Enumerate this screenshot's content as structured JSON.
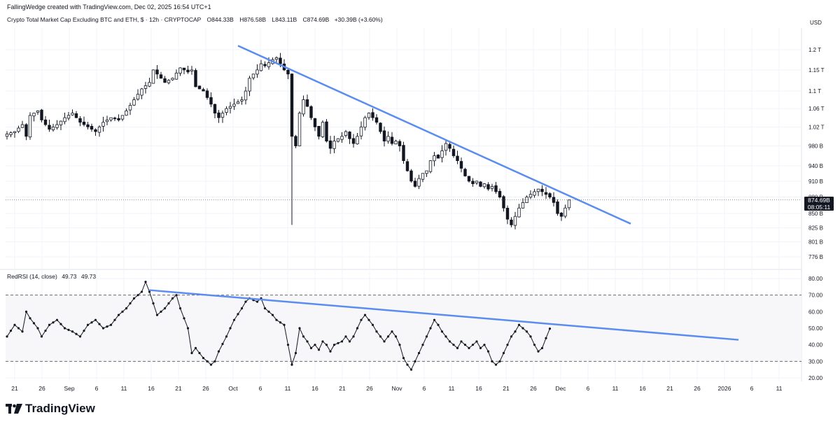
{
  "header": {
    "author_line": "FallingWedge created with TradingView.com, Dec 02, 2025 16:54 UTC+1"
  },
  "symbol": {
    "name": "Crypto Total Market Cap Excluding BTC and ETH, $ · 12h · CRYPTOCAP",
    "open": "O844.33B",
    "high": "H876.58B",
    "low": "L843.11B",
    "close": "C874.69B",
    "change": "+30.39B (+3.60%)"
  },
  "price_label": {
    "value": "874.69B",
    "countdown": "08:05:11"
  },
  "rsi_label": {
    "name": "RedRSI (14, close)",
    "v1": "49.73",
    "v2": "49.73"
  },
  "logo": {
    "text": "TradingView"
  },
  "colors": {
    "up": "#ffffff",
    "down": "#131722",
    "trend": "#5b8cf0",
    "grid": "#f0f3fa",
    "axis_text": "#131722"
  },
  "chart_data": [
    {
      "type": "candlestick",
      "unit": "USD",
      "y_scale": "log",
      "y_ticks": [
        "1.2 T",
        "1.15 T",
        "1.1 T",
        "1.06 T",
        "1.02 T",
        "980 B",
        "940 B",
        "910 B",
        "880 B",
        "850 B",
        "825 B",
        "801 B",
        "776 B"
      ],
      "y_tick_values": [
        1200,
        1150,
        1100,
        1060,
        1020,
        980,
        940,
        910,
        880,
        850,
        825,
        801,
        776
      ],
      "x_ticks": [
        "21",
        "26",
        "Sep",
        "6",
        "11",
        "16",
        "21",
        "26",
        "Oct",
        "6",
        "11",
        "16",
        "21",
        "26",
        "Nov",
        "6",
        "11",
        "16",
        "21",
        "26",
        "Dec",
        "6",
        "11",
        "16",
        "21",
        "26",
        "2026",
        "6",
        "11"
      ],
      "close_path": [
        [
          0,
          1005
        ],
        [
          2,
          1010
        ],
        [
          4,
          1025
        ],
        [
          5,
          1000
        ],
        [
          6,
          1045
        ],
        [
          8,
          1055
        ],
        [
          9,
          1035
        ],
        [
          11,
          1015
        ],
        [
          13,
          1025
        ],
        [
          15,
          1040
        ],
        [
          17,
          1050
        ],
        [
          19,
          1030
        ],
        [
          21,
          1020
        ],
        [
          23,
          1010
        ],
        [
          25,
          1030
        ],
        [
          27,
          1040
        ],
        [
          29,
          1035
        ],
        [
          31,
          1055
        ],
        [
          33,
          1080
        ],
        [
          35,
          1105
        ],
        [
          37,
          1120
        ],
        [
          38,
          1150
        ],
        [
          39,
          1140
        ],
        [
          41,
          1120
        ],
        [
          43,
          1130
        ],
        [
          45,
          1155
        ],
        [
          47,
          1145
        ],
        [
          48,
          1150
        ],
        [
          49,
          1110
        ],
        [
          51,
          1100
        ],
        [
          53,
          1070
        ],
        [
          54,
          1050
        ],
        [
          55,
          1040
        ],
        [
          57,
          1060
        ],
        [
          59,
          1070
        ],
        [
          61,
          1080
        ],
        [
          62,
          1100
        ],
        [
          63,
          1130
        ],
        [
          65,
          1150
        ],
        [
          66,
          1165
        ],
        [
          67,
          1160
        ],
        [
          69,
          1175
        ],
        [
          70,
          1180
        ],
        [
          71,
          1165
        ],
        [
          72,
          1150
        ],
        [
          73,
          1140
        ],
        [
          74,
          1000
        ],
        [
          75,
          980
        ],
        [
          76,
          1050
        ],
        [
          77,
          1080
        ],
        [
          78,
          1065
        ],
        [
          79,
          1040
        ],
        [
          80,
          1020
        ],
        [
          81,
          1000
        ],
        [
          82,
          1030
        ],
        [
          83,
          990
        ],
        [
          84,
          975
        ],
        [
          85,
          990
        ],
        [
          87,
          1000
        ],
        [
          88,
          1010
        ],
        [
          89,
          995
        ],
        [
          90,
          985
        ],
        [
          91,
          1000
        ],
        [
          92,
          1020
        ],
        [
          93,
          1040
        ],
        [
          94,
          1050
        ],
        [
          95,
          1040
        ],
        [
          96,
          1030
        ],
        [
          97,
          1010
        ],
        [
          98,
          990
        ],
        [
          99,
          1000
        ],
        [
          100,
          985
        ],
        [
          101,
          990
        ],
        [
          102,
          980
        ],
        [
          103,
          950
        ],
        [
          104,
          930
        ],
        [
          105,
          910
        ],
        [
          106,
          900
        ],
        [
          107,
          915
        ],
        [
          108,
          925
        ],
        [
          109,
          930
        ],
        [
          110,
          950
        ],
        [
          111,
          960
        ],
        [
          112,
          955
        ],
        [
          113,
          970
        ],
        [
          114,
          985
        ],
        [
          115,
          975
        ],
        [
          116,
          960
        ],
        [
          117,
          950
        ],
        [
          118,
          935
        ],
        [
          119,
          920
        ],
        [
          120,
          910
        ],
        [
          121,
          905
        ],
        [
          122,
          910
        ],
        [
          123,
          900
        ],
        [
          124,
          905
        ],
        [
          125,
          895
        ],
        [
          126,
          900
        ],
        [
          127,
          890
        ],
        [
          128,
          880
        ],
        [
          129,
          860
        ],
        [
          130,
          840
        ],
        [
          131,
          830
        ],
        [
          132,
          845
        ],
        [
          133,
          860
        ],
        [
          134,
          870
        ],
        [
          135,
          880
        ],
        [
          136,
          885
        ],
        [
          137,
          890
        ],
        [
          138,
          895
        ],
        [
          139,
          890
        ],
        [
          140,
          885
        ],
        [
          141,
          880
        ],
        [
          142,
          870
        ],
        [
          143,
          850
        ],
        [
          144,
          845
        ],
        [
          145,
          860
        ],
        [
          146,
          874.69
        ]
      ],
      "spike_low": {
        "i": 74,
        "value": 830
      },
      "trendline": {
        "from": [
          60,
          1210
        ],
        "to": [
          162,
          832
        ]
      },
      "last_price": 874.69
    },
    {
      "type": "line",
      "name": "RedRSI (14, close)",
      "y_ticks": [
        "80.00",
        "70.00",
        "60.00",
        "50.00",
        "40.00",
        "30.00",
        "20.00"
      ],
      "y_tick_values": [
        80,
        70,
        60,
        50,
        40,
        30,
        20
      ],
      "bands": [
        70,
        30
      ],
      "rsi_path": [
        [
          0,
          45
        ],
        [
          2,
          52
        ],
        [
          4,
          48
        ],
        [
          5,
          60
        ],
        [
          6,
          56
        ],
        [
          8,
          50
        ],
        [
          9,
          45
        ],
        [
          11,
          52
        ],
        [
          13,
          55
        ],
        [
          15,
          50
        ],
        [
          17,
          48
        ],
        [
          19,
          45
        ],
        [
          21,
          52
        ],
        [
          23,
          55
        ],
        [
          25,
          50
        ],
        [
          27,
          52
        ],
        [
          29,
          58
        ],
        [
          31,
          62
        ],
        [
          33,
          68
        ],
        [
          35,
          72
        ],
        [
          36,
          78
        ],
        [
          37,
          72
        ],
        [
          38,
          65
        ],
        [
          39,
          58
        ],
        [
          41,
          62
        ],
        [
          43,
          68
        ],
        [
          44,
          70
        ],
        [
          45,
          62
        ],
        [
          47,
          50
        ],
        [
          48,
          35
        ],
        [
          49,
          38
        ],
        [
          51,
          32
        ],
        [
          53,
          28
        ],
        [
          54,
          30
        ],
        [
          55,
          36
        ],
        [
          57,
          45
        ],
        [
          59,
          55
        ],
        [
          61,
          62
        ],
        [
          62,
          66
        ],
        [
          63,
          68
        ],
        [
          65,
          66
        ],
        [
          66,
          68
        ],
        [
          67,
          62
        ],
        [
          69,
          58
        ],
        [
          70,
          55
        ],
        [
          72,
          52
        ],
        [
          73,
          40
        ],
        [
          74,
          28
        ],
        [
          75,
          35
        ],
        [
          76,
          50
        ],
        [
          77,
          45
        ],
        [
          78,
          42
        ],
        [
          79,
          38
        ],
        [
          80,
          40
        ],
        [
          81,
          37
        ],
        [
          82,
          42
        ],
        [
          83,
          40
        ],
        [
          84,
          36
        ],
        [
          85,
          40
        ],
        [
          87,
          42
        ],
        [
          88,
          45
        ],
        [
          89,
          42
        ],
        [
          90,
          45
        ],
        [
          91,
          50
        ],
        [
          92,
          55
        ],
        [
          93,
          58
        ],
        [
          94,
          55
        ],
        [
          95,
          52
        ],
        [
          96,
          48
        ],
        [
          97,
          45
        ],
        [
          98,
          42
        ],
        [
          99,
          45
        ],
        [
          100,
          48
        ],
        [
          101,
          45
        ],
        [
          102,
          40
        ],
        [
          103,
          32
        ],
        [
          104,
          28
        ],
        [
          105,
          25
        ],
        [
          106,
          30
        ],
        [
          107,
          35
        ],
        [
          108,
          40
        ],
        [
          109,
          45
        ],
        [
          110,
          50
        ],
        [
          111,
          55
        ],
        [
          112,
          52
        ],
        [
          113,
          48
        ],
        [
          114,
          45
        ],
        [
          115,
          42
        ],
        [
          116,
          40
        ],
        [
          117,
          38
        ],
        [
          118,
          42
        ],
        [
          119,
          40
        ],
        [
          120,
          38
        ],
        [
          121,
          40
        ],
        [
          122,
          42
        ],
        [
          123,
          38
        ],
        [
          124,
          40
        ],
        [
          125,
          36
        ],
        [
          126,
          30
        ],
        [
          127,
          28
        ],
        [
          128,
          30
        ],
        [
          129,
          35
        ],
        [
          130,
          40
        ],
        [
          131,
          45
        ],
        [
          132,
          48
        ],
        [
          133,
          52
        ],
        [
          134,
          50
        ],
        [
          135,
          48
        ],
        [
          136,
          45
        ],
        [
          137,
          40
        ],
        [
          138,
          36
        ],
        [
          139,
          38
        ],
        [
          140,
          44
        ],
        [
          141,
          49.73
        ]
      ],
      "trendline": {
        "from": [
          37,
          73
        ],
        "to": [
          190,
          43
        ]
      },
      "last_value": 49.73
    }
  ]
}
